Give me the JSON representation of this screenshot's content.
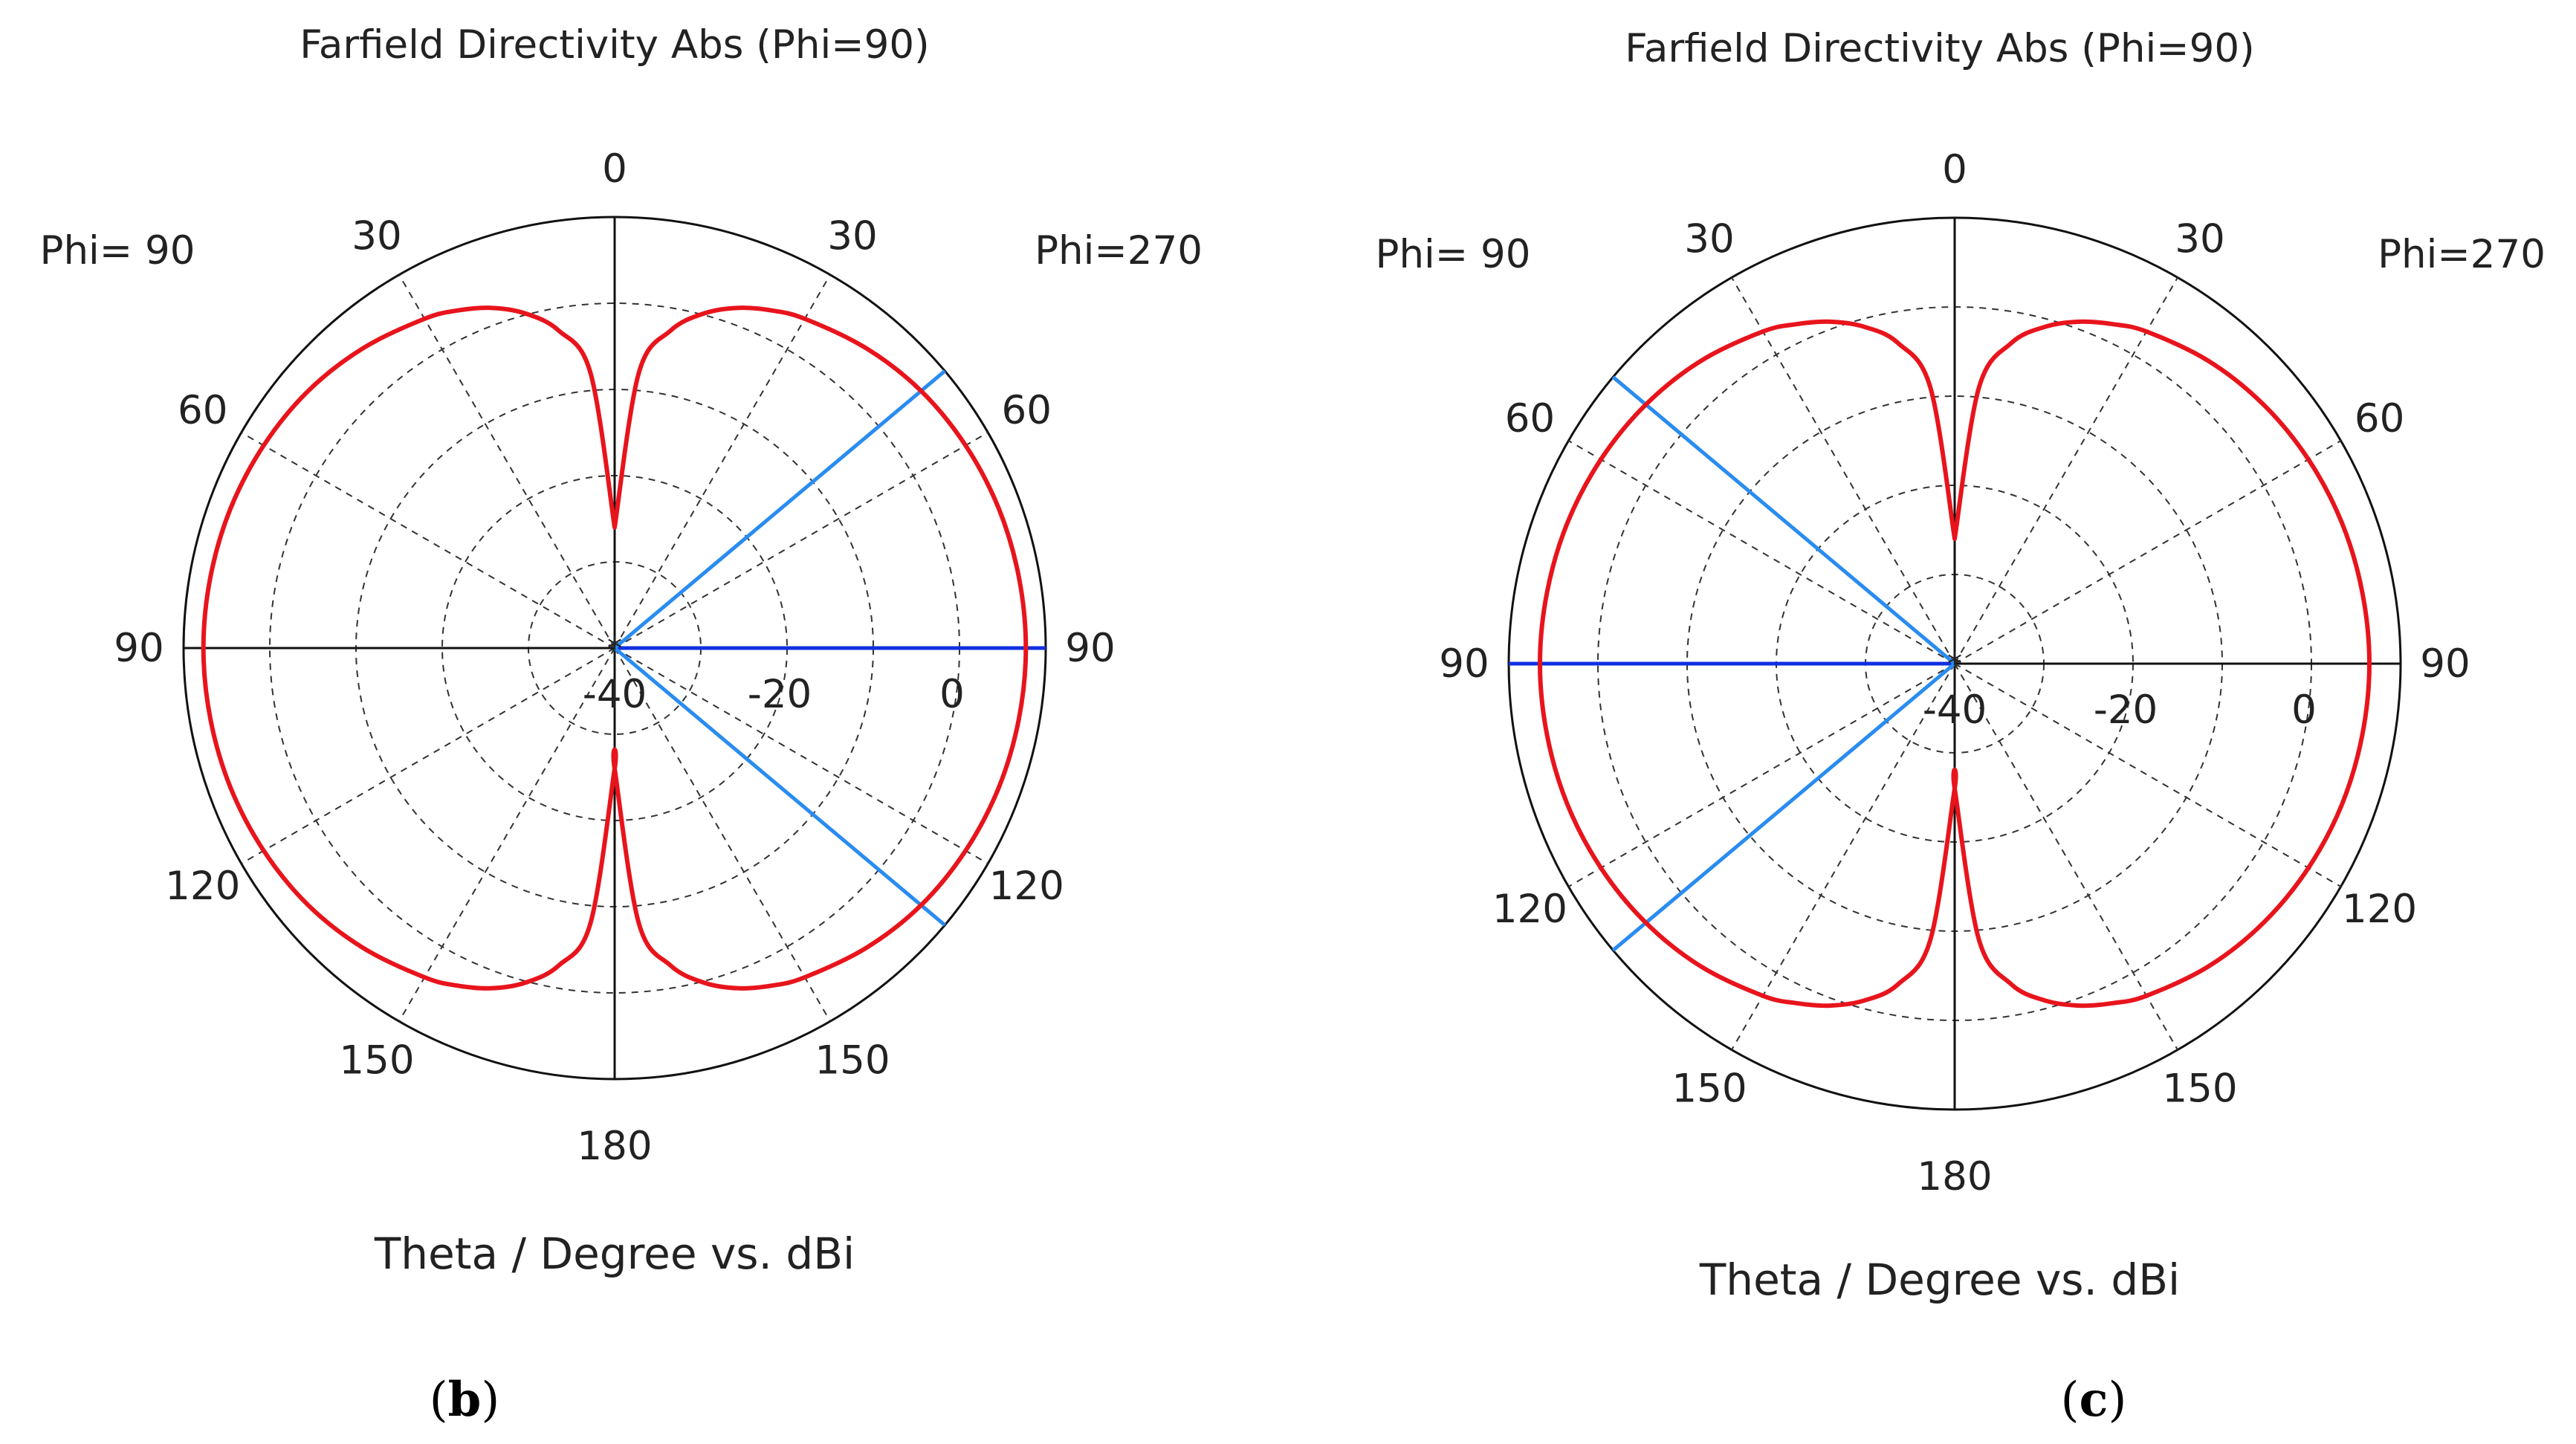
{
  "chart_data": [
    {
      "type": "polar",
      "panel_label": "b",
      "title": "Farfield Directivity Abs (Phi=90)",
      "xlabel": "Theta / Degree vs. dBi",
      "left_side_label": "Phi= 90",
      "right_side_label": "Phi=270",
      "angle_tick_labels": [
        "0",
        "30",
        "60",
        "90",
        "120",
        "150",
        "180"
      ],
      "radial_tick_labels": [
        "-40",
        "-20",
        "0"
      ],
      "radial_range_dbi": [
        -40,
        10
      ],
      "radial_ticks_dbi": [
        -40,
        -30,
        -20,
        -10,
        0,
        10
      ],
      "angular_grid_step_deg": 30,
      "series": [
        {
          "name": "Directivity",
          "color": "#e8141c",
          "unit": "dBi",
          "theta_deg": [
            0,
            5,
            10,
            15,
            20,
            25,
            30,
            40,
            50,
            60,
            70,
            80,
            90,
            100,
            110,
            120,
            130,
            140,
            150,
            155,
            160,
            165,
            170,
            175,
            180
          ],
          "values": [
            -26,
            -8,
            -2.6,
            0.2,
            2.0,
            3.2,
            4.1,
            5.4,
            6.4,
            7.0,
            7.4,
            7.6,
            7.7,
            7.6,
            7.4,
            7.0,
            6.4,
            5.4,
            4.1,
            3.2,
            2.0,
            0.2,
            -2.6,
            -8,
            -26
          ]
        }
      ],
      "reference_lines": [
        {
          "name": "main-lobe-direction",
          "color": "#1030e0",
          "theta_deg": 90,
          "side": "right"
        },
        {
          "name": "beamwidth-limit-upper",
          "color": "#2a8cf0",
          "theta_deg": 50,
          "side": "right"
        },
        {
          "name": "beamwidth-limit-lower",
          "color": "#2a8cf0",
          "theta_deg": 130,
          "side": "right"
        }
      ]
    },
    {
      "type": "polar",
      "panel_label": "c",
      "title": "Farfield Directivity Abs (Phi=90)",
      "xlabel": "Theta / Degree vs. dBi",
      "left_side_label": "Phi= 90",
      "right_side_label": "Phi=270",
      "angle_tick_labels": [
        "0",
        "30",
        "60",
        "90",
        "120",
        "150",
        "180"
      ],
      "radial_tick_labels": [
        "-40",
        "-20",
        "0"
      ],
      "radial_range_dbi": [
        -40,
        10
      ],
      "radial_ticks_dbi": [
        -40,
        -30,
        -20,
        -10,
        0,
        10
      ],
      "angular_grid_step_deg": 30,
      "series": [
        {
          "name": "Directivity",
          "color": "#e8141c",
          "unit": "dBi",
          "theta_deg": [
            0,
            5,
            10,
            15,
            20,
            25,
            30,
            40,
            50,
            60,
            70,
            80,
            90,
            100,
            110,
            120,
            130,
            140,
            150,
            155,
            160,
            165,
            170,
            175,
            180
          ],
          "values": [
            -26,
            -9,
            -3.5,
            -0.9,
            0.8,
            2.0,
            3.0,
            4.3,
            5.2,
            5.8,
            6.2,
            6.4,
            6.5,
            6.4,
            6.2,
            5.8,
            5.2,
            4.3,
            3.0,
            2.0,
            0.8,
            -0.9,
            -3.5,
            -9,
            -26
          ]
        }
      ],
      "reference_lines": [
        {
          "name": "main-lobe-direction",
          "color": "#1030e0",
          "theta_deg": 90,
          "side": "left"
        },
        {
          "name": "beamwidth-limit-upper",
          "color": "#2a8cf0",
          "theta_deg": 50,
          "side": "left"
        },
        {
          "name": "beamwidth-limit-lower",
          "color": "#2a8cf0",
          "theta_deg": 130,
          "side": "left"
        }
      ]
    }
  ]
}
